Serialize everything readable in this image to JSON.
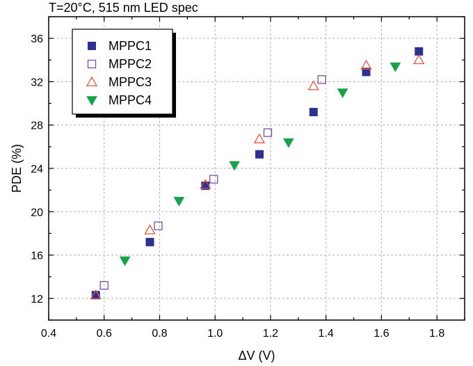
{
  "chart_data": {
    "type": "scatter",
    "title": "T=20°C,  515 nm LED spec",
    "xlabel": "ΔV (V)",
    "ylabel": "PDE (%)",
    "xlim": [
      0.4,
      1.9
    ],
    "ylim": [
      10,
      38
    ],
    "x_ticks": [
      "0.4",
      "0.6",
      "0.8",
      "1.0",
      "1.2",
      "1.4",
      "1.6",
      "1.8"
    ],
    "y_ticks": [
      "12",
      "16",
      "20",
      "24",
      "28",
      "32",
      "36"
    ],
    "grid": true,
    "legend_position": "top-left",
    "series": [
      {
        "name": "MPPC1",
        "marker": "filled-square",
        "color": "#2e3192",
        "points": [
          [
            0.57,
            12.3
          ],
          [
            0.765,
            17.2
          ],
          [
            0.965,
            22.4
          ],
          [
            1.16,
            25.3
          ],
          [
            1.355,
            29.2
          ],
          [
            1.545,
            32.9
          ],
          [
            1.735,
            34.8
          ]
        ]
      },
      {
        "name": "MPPC2",
        "marker": "open-square",
        "color": "#7b4fa8",
        "points": [
          [
            0.6,
            13.2
          ],
          [
            0.795,
            18.7
          ],
          [
            0.995,
            23.0
          ],
          [
            1.19,
            27.3
          ],
          [
            1.385,
            32.2
          ]
        ]
      },
      {
        "name": "MPPC3",
        "marker": "open-triangle-up",
        "color": "#e8553a",
        "points": [
          [
            0.57,
            12.3
          ],
          [
            0.765,
            18.3
          ],
          [
            0.965,
            22.5
          ],
          [
            1.16,
            26.7
          ],
          [
            1.355,
            31.6
          ],
          [
            1.545,
            33.5
          ],
          [
            1.735,
            34.0
          ]
        ]
      },
      {
        "name": "MPPC4",
        "marker": "filled-triangle-down",
        "color": "#16a34a",
        "points": [
          [
            0.675,
            15.5
          ],
          [
            0.87,
            21.0
          ],
          [
            1.07,
            24.3
          ],
          [
            1.265,
            26.4
          ],
          [
            1.46,
            31.0
          ],
          [
            1.65,
            33.4
          ]
        ]
      }
    ]
  }
}
